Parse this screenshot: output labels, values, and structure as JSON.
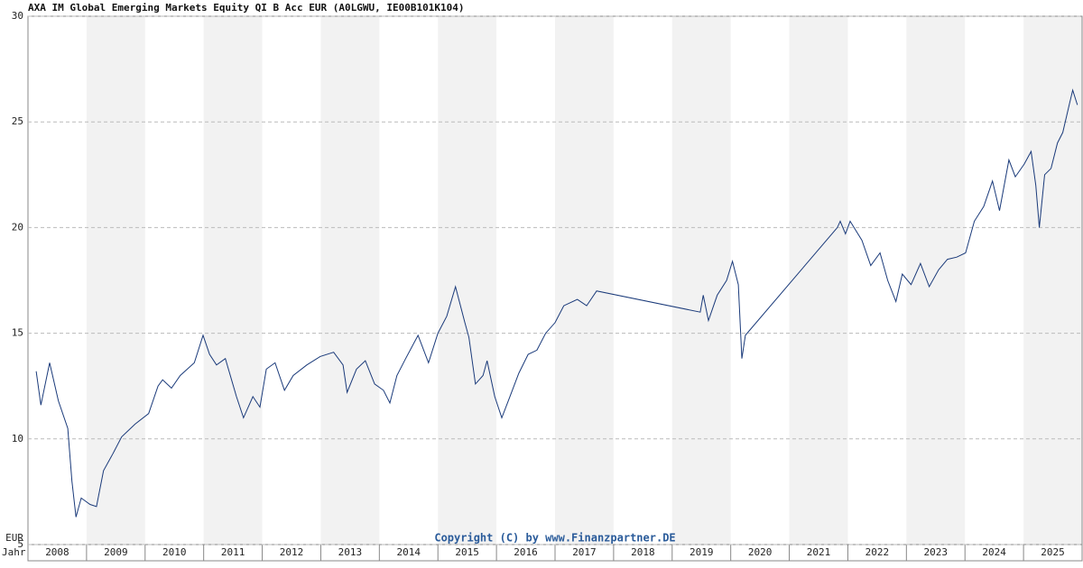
{
  "chart_data": {
    "type": "line",
    "title": "AXA IM Global Emerging Markets Equity QI B Acc EUR (A0LGWU, IE00B101K104)",
    "x_label": "Jahr",
    "y_label": "EUR",
    "annotation": "Copyright (C) by www.Finanzpartner.DE",
    "categories": [
      "2008",
      "2009",
      "2010",
      "2011",
      "2012",
      "2013",
      "2014",
      "2015",
      "2016",
      "2017",
      "2018",
      "2019",
      "2020",
      "2021",
      "2022",
      "2023",
      "2024",
      "2025"
    ],
    "xlim": [
      2008,
      2026
    ],
    "ylim": [
      5,
      30
    ],
    "yticks": [
      5,
      10,
      15,
      20,
      25,
      30
    ],
    "grid": true,
    "series": [
      {
        "color": "#1a3a7a",
        "x": [
          2008.14,
          2008.22,
          2008.37,
          2008.52,
          2008.68,
          2008.75,
          2008.82,
          2008.91,
          2009.06,
          2009.17,
          2009.29,
          2009.45,
          2009.6,
          2009.83,
          2010.06,
          2010.22,
          2010.3,
          2010.45,
          2010.6,
          2010.84,
          2010.99,
          2011.1,
          2011.22,
          2011.37,
          2011.56,
          2011.68,
          2011.84,
          2011.96,
          2012.07,
          2012.22,
          2012.38,
          2012.53,
          2012.76,
          2012.99,
          2013.22,
          2013.38,
          2013.45,
          2013.61,
          2013.76,
          2013.92,
          2014.07,
          2014.18,
          2014.3,
          2014.45,
          2014.66,
          2014.84,
          2015.0,
          2015.15,
          2015.3,
          2015.46,
          2015.53,
          2015.64,
          2015.77,
          2015.84,
          2015.97,
          2016.09,
          2016.23,
          2016.38,
          2016.54,
          2016.69,
          2016.84,
          2017.0,
          2017.15,
          2017.38,
          2017.54,
          2017.71,
          2019.48,
          2019.53,
          2019.62,
          2019.77,
          2019.93,
          2020.03,
          2020.13,
          2020.19,
          2020.25,
          2021.82,
          2021.87,
          2021.96,
          2022.04,
          2022.24,
          2022.39,
          2022.55,
          2022.68,
          2022.82,
          2022.93,
          2023.08,
          2023.24,
          2023.39,
          2023.55,
          2023.7,
          2023.86,
          2024.01,
          2024.16,
          2024.32,
          2024.47,
          2024.59,
          2024.75,
          2024.86,
          2025.01,
          2025.13,
          2025.21,
          2025.27,
          2025.36,
          2025.47,
          2025.58,
          2025.67,
          2025.78,
          2025.84,
          2025.92
        ],
        "values": [
          13.2,
          11.6,
          13.6,
          11.8,
          10.5,
          8.0,
          6.3,
          7.2,
          6.9,
          6.8,
          8.5,
          9.3,
          10.1,
          10.7,
          11.2,
          12.5,
          12.8,
          12.4,
          13.0,
          13.6,
          14.9,
          14.0,
          13.5,
          13.8,
          12.0,
          11.0,
          12.0,
          11.5,
          13.3,
          13.6,
          12.3,
          13.0,
          13.5,
          13.9,
          14.1,
          13.5,
          12.2,
          13.3,
          13.7,
          12.6,
          12.3,
          11.7,
          13.0,
          13.8,
          14.9,
          13.6,
          15.0,
          15.8,
          17.2,
          15.5,
          14.8,
          12.6,
          13.0,
          13.7,
          12.0,
          11.0,
          12.0,
          13.1,
          14.0,
          14.2,
          15.0,
          15.5,
          16.3,
          16.6,
          16.3,
          17.0,
          16.0,
          16.8,
          15.6,
          16.8,
          17.5,
          18.4,
          17.3,
          13.8,
          14.9,
          20.0,
          20.3,
          19.7,
          20.3,
          19.4,
          18.2,
          18.8,
          17.5,
          16.5,
          17.8,
          17.3,
          18.3,
          17.2,
          18.0,
          18.5,
          18.6,
          18.8,
          20.3,
          21.0,
          22.2,
          20.8,
          23.2,
          22.4,
          23.0,
          23.6,
          22.0,
          20.0,
          22.5,
          22.8,
          24.0,
          24.5,
          25.8,
          26.5,
          25.8
        ]
      }
    ]
  }
}
